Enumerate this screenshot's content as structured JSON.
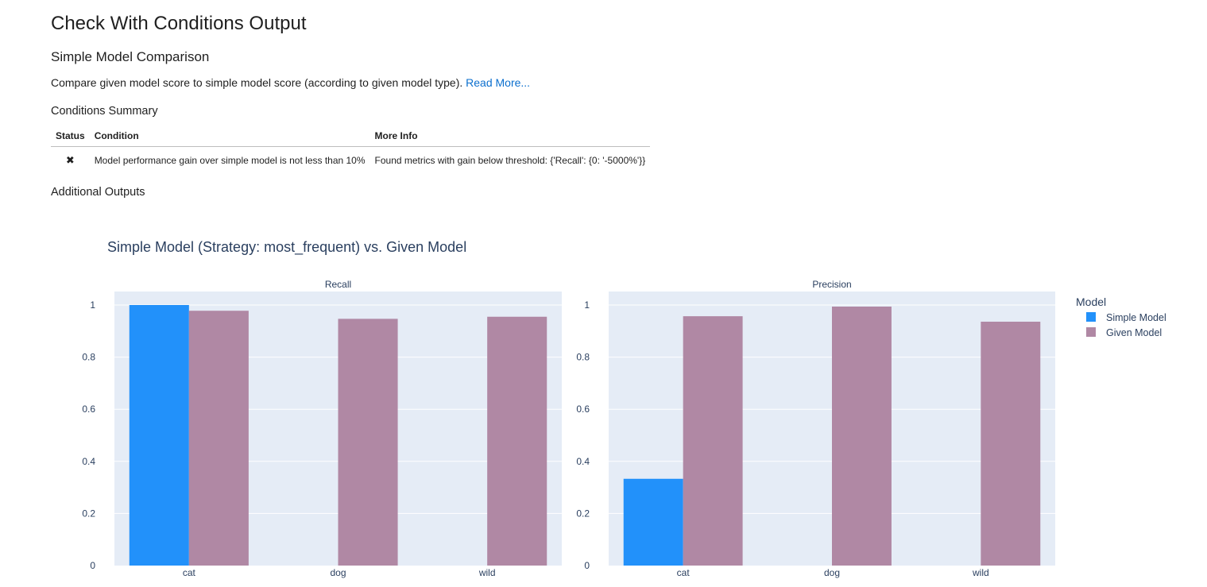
{
  "header": {
    "title": "Check With Conditions Output",
    "check_name": "Simple Model Comparison",
    "description": "Compare given model score to simple model score (according to given model type).",
    "read_more_label": "Read More...",
    "conditions_summary_label": "Conditions Summary",
    "additional_outputs_label": "Additional Outputs"
  },
  "conditions_table": {
    "columns": [
      "Status",
      "Condition",
      "More Info"
    ],
    "rows": [
      {
        "status": "✖",
        "condition": "Model performance gain over simple model is not less than 10%",
        "more_info": "Found metrics with gain below threshold: {'Recall': {0: '-5000%'}}"
      }
    ]
  },
  "colors": {
    "simple": "#2291fa",
    "given": "#b088a4",
    "plot_bg": "#e5ecf6",
    "text": "#2a3f5f"
  },
  "chart_data": {
    "type": "bar",
    "title": "Simple Model (Strategy: most_frequent) vs. Given Model",
    "legend_title": "Model",
    "legend_position": "top-right",
    "categories": [
      "cat",
      "dog",
      "wild"
    ],
    "ylim": [
      0,
      1
    ],
    "yticks": [
      "0",
      "0.2",
      "0.4",
      "0.6",
      "0.8",
      "1"
    ],
    "subplots": [
      {
        "name": "Recall",
        "series": [
          {
            "name": "Simple Model",
            "values": [
              1,
              0,
              0
            ]
          },
          {
            "name": "Given Model",
            "values": [
              0.978,
              0.947,
              0.955
            ]
          }
        ]
      },
      {
        "name": "Precision",
        "series": [
          {
            "name": "Simple Model",
            "values": [
              0.333,
              0,
              0
            ]
          },
          {
            "name": "Given Model",
            "values": [
              0.957,
              0.994,
              0.936
            ]
          }
        ]
      }
    ]
  }
}
